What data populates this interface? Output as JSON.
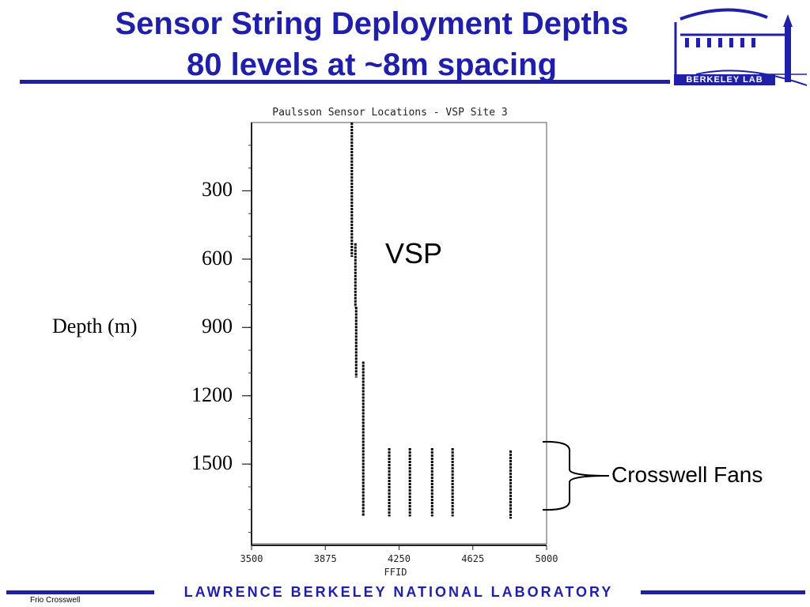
{
  "header": {
    "title_line1": "Sensor String Deployment Depths",
    "title_line2": "80 levels at  ~8m spacing",
    "logo_text": "BERKELEY LAB",
    "accent_color": "#1f1faa"
  },
  "annotations": {
    "vsp": "VSP",
    "crosswell": "Crosswell Fans",
    "depth_label": "Depth (m)",
    "depth_ticks": [
      "300",
      "600",
      "900",
      "1200",
      "1500"
    ]
  },
  "chart_data": {
    "type": "line",
    "title": "Paulsson Sensor Locations - VSP Site 3",
    "xlabel": "FFID",
    "ylabel": "Depth (m)",
    "xlim": [
      3500,
      5000
    ],
    "ylim": [
      1850,
      0
    ],
    "x_ticks": [
      "3500",
      "3875",
      "4250",
      "4625",
      "5000"
    ],
    "y_ticks": [
      300,
      600,
      900,
      1200,
      1500
    ],
    "series": [
      {
        "x": 4010,
        "y_start": 0,
        "y_end": 590
      },
      {
        "x": 4028,
        "y_start": 530,
        "y_end": 810
      },
      {
        "x": 4032,
        "y_start": 810,
        "y_end": 1120
      },
      {
        "x": 4068,
        "y_start": 1050,
        "y_end": 1730
      },
      {
        "x": 4200,
        "y_start": 1430,
        "y_end": 1730
      },
      {
        "x": 4305,
        "y_start": 1430,
        "y_end": 1730
      },
      {
        "x": 4418,
        "y_start": 1430,
        "y_end": 1730
      },
      {
        "x": 4522,
        "y_start": 1430,
        "y_end": 1730
      },
      {
        "x": 4817,
        "y_start": 1440,
        "y_end": 1740
      }
    ]
  },
  "footer": {
    "lab_name": "LAWRENCE BERKELEY NATIONAL LABORATORY",
    "left_note": "Frio Crosswell"
  }
}
